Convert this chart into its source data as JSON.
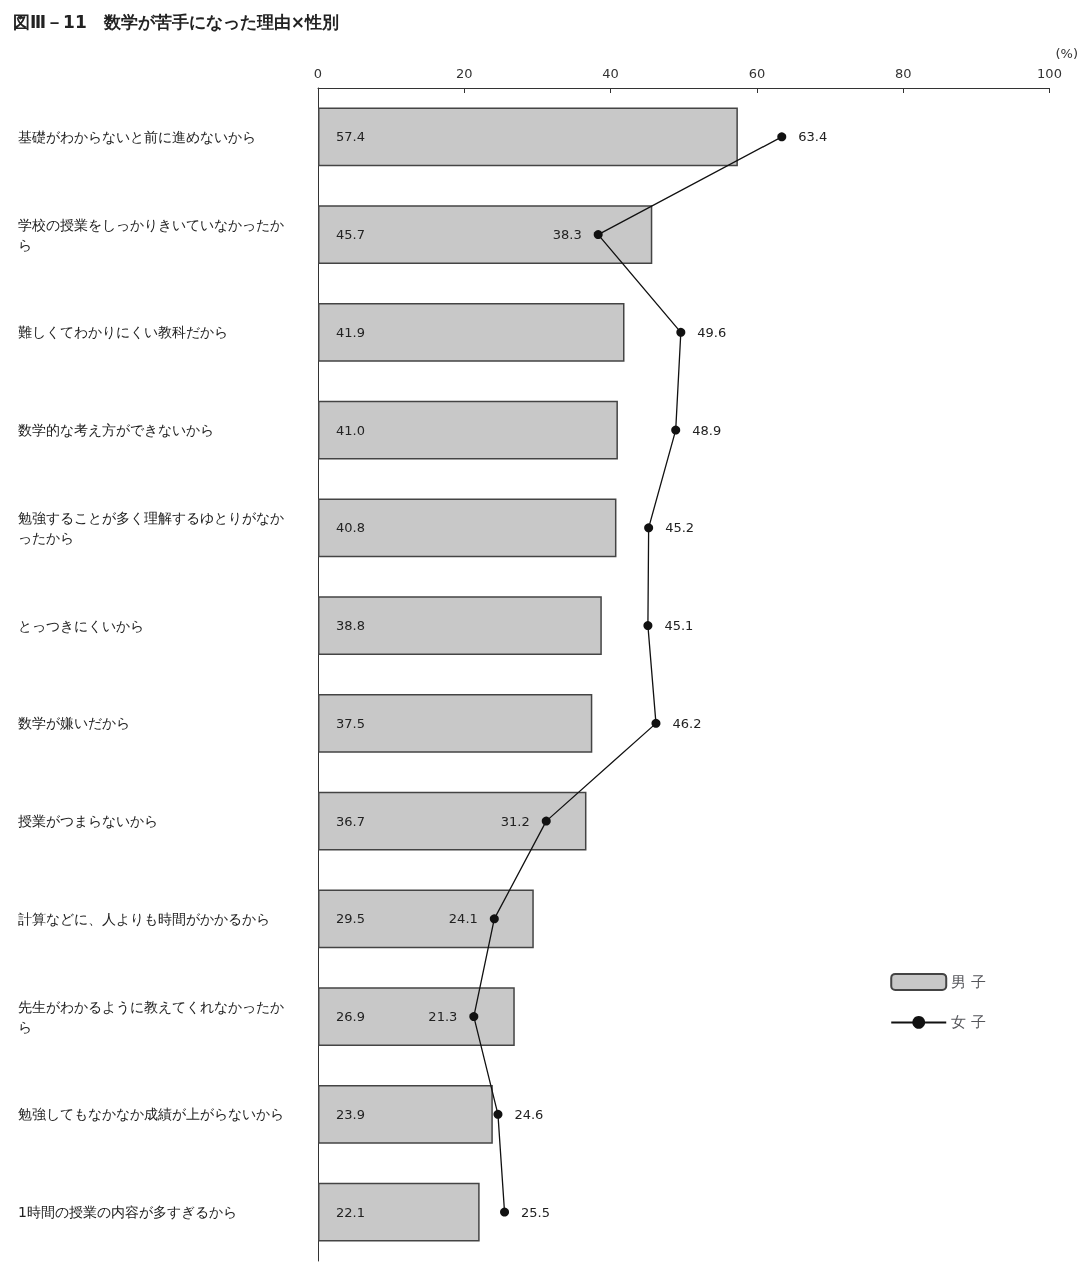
{
  "chart_data": {
    "type": "bar",
    "orientation": "horizontal",
    "title": "図Ⅲ－11　数学が苦手になった理由×性別",
    "xlabel": "(%)",
    "categories": [
      "基礎がわからないと前に進めないから",
      "学校の授業をしっかりきいていなかったから",
      "難しくてわかりにくい教科だから",
      "数学的な考え方ができないから",
      "勉強することが多く理解するゆとりがなかったから",
      "とっつきにくいから",
      "数学が嫌いだから",
      "授業がつまらないから",
      "計算などに、人よりも時間がかかるから",
      "先生がわかるように教えてくれなかったから",
      "勉強してもなかなか成績が上がらないから",
      "1時間の授業の内容が多すぎるから"
    ],
    "series": [
      {
        "name": "男 子",
        "color": "#c8c8c8",
        "values": [
          57.4,
          45.7,
          41.9,
          41.0,
          40.8,
          38.8,
          37.5,
          36.7,
          29.5,
          26.9,
          23.9,
          22.1
        ],
        "value_labels": [
          "57.4",
          "45.7",
          "41.9",
          "41.0",
          "40.8",
          "38.8",
          "37.5",
          "36.7",
          "29.5",
          "26.9",
          "23.9",
          "22.1"
        ]
      },
      {
        "name": "女 子",
        "type": "line",
        "color": "#111111",
        "values": [
          63.4,
          38.3,
          49.6,
          48.9,
          45.2,
          45.1,
          46.2,
          31.2,
          24.1,
          21.3,
          24.6,
          25.5
        ],
        "value_labels": [
          "63.4",
          "38.3",
          "49.6",
          "48.9",
          "45.2",
          "45.1",
          "46.2",
          "31.2",
          "24.1",
          "21.3",
          "24.6",
          "25.5"
        ]
      }
    ],
    "xlim": [
      0,
      100
    ],
    "xticks": [
      0,
      20,
      40,
      60,
      80,
      100
    ],
    "legend": "right",
    "marker": "circle",
    "grid": false
  }
}
